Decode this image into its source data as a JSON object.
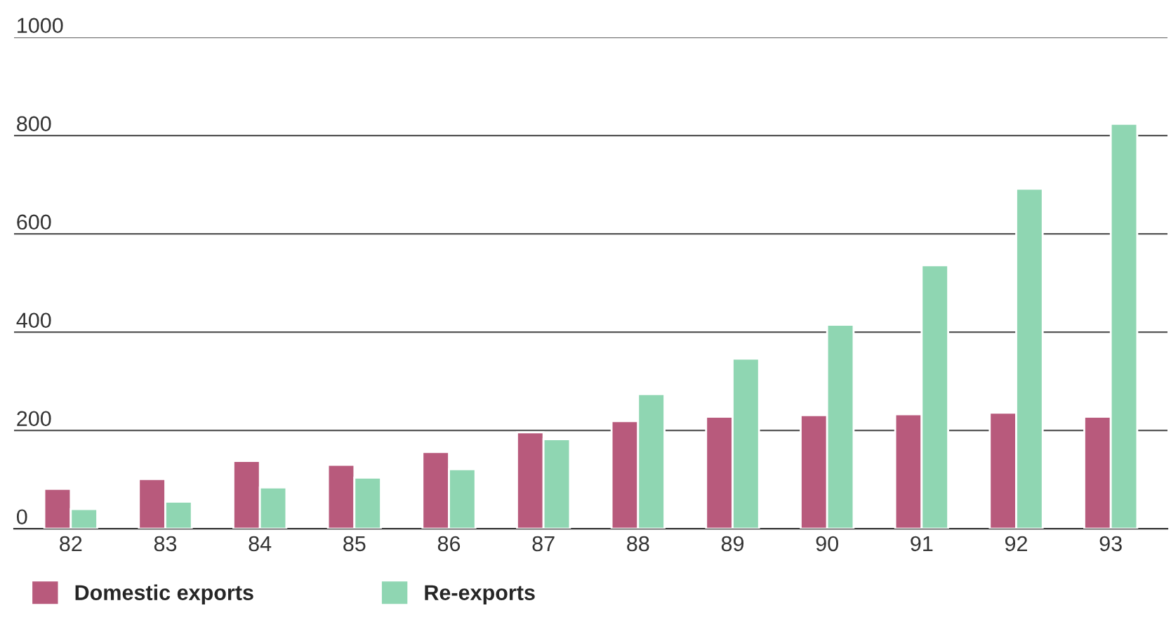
{
  "chart_data": {
    "type": "bar",
    "categories": [
      "82",
      "83",
      "84",
      "85",
      "86",
      "87",
      "88",
      "89",
      "90",
      "91",
      "92",
      "93"
    ],
    "series": [
      {
        "name": "Domestic exports",
        "color": "#b85a7c",
        "values": [
          81,
          101,
          138,
          130,
          156,
          196,
          219,
          228,
          231,
          233,
          236,
          228
        ]
      },
      {
        "name": "Re-exports",
        "color": "#8fd6b2",
        "values": [
          40,
          55,
          84,
          104,
          121,
          182,
          274,
          346,
          415,
          536,
          692,
          824
        ]
      }
    ],
    "ylim": [
      0,
      1000
    ],
    "yticks": [
      0,
      200,
      400,
      600,
      800,
      1000
    ],
    "grid": "y",
    "legend": "bottom left"
  }
}
